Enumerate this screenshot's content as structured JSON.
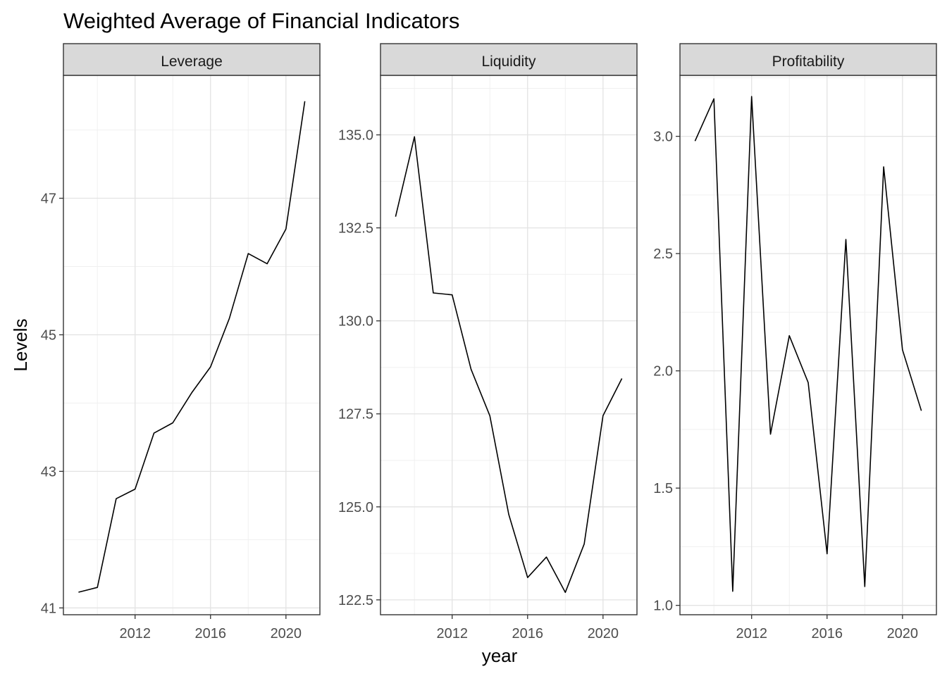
{
  "chart_data": {
    "type": "line",
    "title": "Weighted Average of Financial Indicators",
    "xlabel": "year",
    "ylabel": "Levels",
    "grid": true,
    "legend": "none",
    "x_ticks": [
      2012,
      2016,
      2020
    ],
    "x": [
      2009,
      2010,
      2011,
      2012,
      2013,
      2014,
      2015,
      2016,
      2017,
      2018,
      2019,
      2020,
      2021
    ],
    "xlim": [
      2008.2,
      2021.8
    ],
    "line_color": "#000000",
    "strip_fill": "#d9d9d9",
    "panels": [
      {
        "strip": "Leverage",
        "ylim": [
          40.9,
          48.8
        ],
        "y_ticks": [
          41,
          43,
          45,
          47
        ],
        "y_tick_labels": [
          "41",
          "43",
          "45",
          "47"
        ],
        "values": [
          41.23,
          41.3,
          42.6,
          42.74,
          43.56,
          43.71,
          44.15,
          44.53,
          45.24,
          46.19,
          46.04,
          46.55,
          48.42
        ]
      },
      {
        "strip": "Liquidity",
        "ylim": [
          122.1,
          136.6
        ],
        "y_ticks": [
          122.5,
          125.0,
          127.5,
          130.0,
          132.5,
          135.0
        ],
        "y_tick_labels": [
          "122.5",
          "125.0",
          "127.5",
          "130.0",
          "132.5",
          "135.0"
        ],
        "values": [
          132.8,
          134.95,
          130.75,
          130.7,
          128.7,
          127.45,
          124.8,
          123.1,
          123.65,
          122.7,
          124.0,
          127.45,
          128.45
        ]
      },
      {
        "strip": "Profitability",
        "ylim": [
          0.96,
          3.26
        ],
        "y_ticks": [
          1.0,
          1.5,
          2.0,
          2.5,
          3.0
        ],
        "y_tick_labels": [
          "1.0",
          "1.5",
          "2.0",
          "2.5",
          "3.0"
        ],
        "values": [
          2.98,
          3.16,
          1.06,
          3.17,
          1.73,
          2.15,
          1.95,
          1.22,
          2.56,
          1.08,
          2.87,
          2.09,
          1.83
        ]
      }
    ]
  }
}
